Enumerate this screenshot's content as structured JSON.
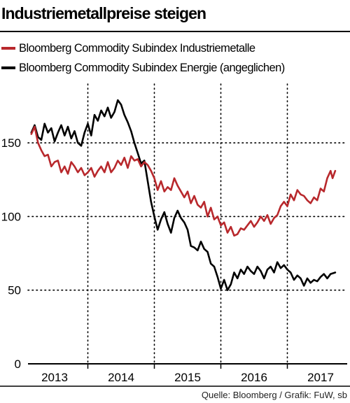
{
  "title": "Industriemetallpreise steigen",
  "source": "Quelle: Bloomberg / Grafik: FuW, sb",
  "colors": {
    "industriemetalle": "#b8282c",
    "energie": "#000000",
    "grid": "#000000"
  },
  "chart_data": {
    "type": "line",
    "title": "Industriemetallpreise steigen",
    "xlabel": "",
    "ylabel": "",
    "ylim": [
      0,
      190
    ],
    "xlim": [
      2012.6,
      2017.4
    ],
    "y_ticks": [
      0,
      50,
      100,
      150
    ],
    "x_tick_labels": [
      {
        "label": "2013",
        "x": 2013.0
      },
      {
        "label": "2014",
        "x": 2014.0
      },
      {
        "label": "2015",
        "x": 2015.0
      },
      {
        "label": "2016",
        "x": 2016.0
      },
      {
        "label": "2017",
        "x": 2017.0
      }
    ],
    "year_boundaries": [
      2013.5,
      2014.5,
      2015.5,
      2016.5
    ],
    "grid": "dotted horizontal at 50, 100, 150; dotted vertical between years",
    "legend_position": "top-left",
    "series": [
      {
        "key": "industriemetalle",
        "name": "Bloomberg Commodity Subindex Industriemetalle",
        "points": [
          [
            2012.65,
            156
          ],
          [
            2012.7,
            161
          ],
          [
            2012.75,
            150
          ],
          [
            2012.8,
            145
          ],
          [
            2012.85,
            141
          ],
          [
            2012.9,
            142
          ],
          [
            2012.95,
            134
          ],
          [
            2013.0,
            137
          ],
          [
            2013.05,
            138
          ],
          [
            2013.1,
            130
          ],
          [
            2013.15,
            134
          ],
          [
            2013.2,
            129
          ],
          [
            2013.25,
            137
          ],
          [
            2013.3,
            134
          ],
          [
            2013.35,
            130
          ],
          [
            2013.4,
            133
          ],
          [
            2013.45,
            128
          ],
          [
            2013.5,
            130
          ],
          [
            2013.55,
            133
          ],
          [
            2013.6,
            127
          ],
          [
            2013.65,
            131
          ],
          [
            2013.7,
            134
          ],
          [
            2013.75,
            130
          ],
          [
            2013.8,
            137
          ],
          [
            2013.85,
            130
          ],
          [
            2013.9,
            133
          ],
          [
            2013.95,
            138
          ],
          [
            2014.0,
            135
          ],
          [
            2014.05,
            140
          ],
          [
            2014.1,
            133
          ],
          [
            2014.15,
            141
          ],
          [
            2014.2,
            138
          ],
          [
            2014.25,
            139
          ],
          [
            2014.3,
            134
          ],
          [
            2014.35,
            137
          ],
          [
            2014.4,
            135
          ],
          [
            2014.45,
            131
          ],
          [
            2014.5,
            126
          ],
          [
            2014.55,
            118
          ],
          [
            2014.6,
            124
          ],
          [
            2014.65,
            117
          ],
          [
            2014.7,
            120
          ],
          [
            2014.75,
            118
          ],
          [
            2014.8,
            126
          ],
          [
            2014.85,
            121
          ],
          [
            2014.9,
            117
          ],
          [
            2014.95,
            113
          ],
          [
            2015.0,
            117
          ],
          [
            2015.05,
            109
          ],
          [
            2015.1,
            114
          ],
          [
            2015.15,
            108
          ],
          [
            2015.2,
            106
          ],
          [
            2015.25,
            110
          ],
          [
            2015.3,
            100
          ],
          [
            2015.35,
            106
          ],
          [
            2015.4,
            98
          ],
          [
            2015.45,
            100
          ],
          [
            2015.5,
            94
          ],
          [
            2015.55,
            96
          ],
          [
            2015.6,
            89
          ],
          [
            2015.65,
            93
          ],
          [
            2015.7,
            87
          ],
          [
            2015.75,
            88
          ],
          [
            2015.8,
            92
          ],
          [
            2015.85,
            91
          ],
          [
            2015.9,
            94
          ],
          [
            2015.95,
            97
          ],
          [
            2016.0,
            93
          ],
          [
            2016.05,
            96
          ],
          [
            2016.1,
            100
          ],
          [
            2016.15,
            97
          ],
          [
            2016.2,
            101
          ],
          [
            2016.25,
            95
          ],
          [
            2016.3,
            99
          ],
          [
            2016.35,
            101
          ],
          [
            2016.4,
            107
          ],
          [
            2016.45,
            110
          ],
          [
            2016.5,
            107
          ],
          [
            2016.55,
            115
          ],
          [
            2016.6,
            111
          ],
          [
            2016.65,
            118
          ],
          [
            2016.7,
            115
          ],
          [
            2016.75,
            114
          ],
          [
            2016.8,
            111
          ],
          [
            2016.85,
            109
          ],
          [
            2016.9,
            113
          ],
          [
            2016.95,
            111
          ],
          [
            2017.0,
            119
          ],
          [
            2017.05,
            117
          ],
          [
            2017.1,
            126
          ],
          [
            2017.15,
            131
          ],
          [
            2017.18,
            126
          ],
          [
            2017.22,
            131
          ]
        ]
      },
      {
        "key": "energie",
        "name": "Bloomberg Commodity Subindex Energie (angeglichen)",
        "points": [
          [
            2012.65,
            157
          ],
          [
            2012.7,
            162
          ],
          [
            2012.75,
            154
          ],
          [
            2012.8,
            152
          ],
          [
            2012.85,
            163
          ],
          [
            2012.9,
            157
          ],
          [
            2012.95,
            160
          ],
          [
            2013.0,
            151
          ],
          [
            2013.05,
            157
          ],
          [
            2013.1,
            162
          ],
          [
            2013.15,
            155
          ],
          [
            2013.2,
            161
          ],
          [
            2013.25,
            153
          ],
          [
            2013.3,
            158
          ],
          [
            2013.35,
            150
          ],
          [
            2013.4,
            148
          ],
          [
            2013.45,
            157
          ],
          [
            2013.5,
            163
          ],
          [
            2013.55,
            155
          ],
          [
            2013.6,
            169
          ],
          [
            2013.65,
            165
          ],
          [
            2013.7,
            172
          ],
          [
            2013.75,
            168
          ],
          [
            2013.8,
            174
          ],
          [
            2013.85,
            167
          ],
          [
            2013.9,
            171
          ],
          [
            2013.95,
            179
          ],
          [
            2014.0,
            176
          ],
          [
            2014.05,
            169
          ],
          [
            2014.1,
            164
          ],
          [
            2014.15,
            158
          ],
          [
            2014.2,
            150
          ],
          [
            2014.25,
            143
          ],
          [
            2014.3,
            136
          ],
          [
            2014.35,
            138
          ],
          [
            2014.4,
            124
          ],
          [
            2014.45,
            110
          ],
          [
            2014.5,
            100
          ],
          [
            2014.55,
            91
          ],
          [
            2014.6,
            98
          ],
          [
            2014.65,
            103
          ],
          [
            2014.7,
            95
          ],
          [
            2014.75,
            89
          ],
          [
            2014.8,
            99
          ],
          [
            2014.85,
            104
          ],
          [
            2014.9,
            99
          ],
          [
            2014.95,
            96
          ],
          [
            2015.0,
            91
          ],
          [
            2015.05,
            80
          ],
          [
            2015.1,
            79
          ],
          [
            2015.15,
            77
          ],
          [
            2015.2,
            83
          ],
          [
            2015.25,
            78
          ],
          [
            2015.3,
            76
          ],
          [
            2015.35,
            68
          ],
          [
            2015.4,
            66
          ],
          [
            2015.45,
            59
          ],
          [
            2015.5,
            51
          ],
          [
            2015.55,
            57
          ],
          [
            2015.6,
            50
          ],
          [
            2015.65,
            54
          ],
          [
            2015.7,
            62
          ],
          [
            2015.75,
            58
          ],
          [
            2015.8,
            64
          ],
          [
            2015.85,
            61
          ],
          [
            2015.9,
            66
          ],
          [
            2015.95,
            63
          ],
          [
            2016.0,
            61
          ],
          [
            2016.05,
            66
          ],
          [
            2016.1,
            63
          ],
          [
            2016.15,
            58
          ],
          [
            2016.2,
            64
          ],
          [
            2016.25,
            66
          ],
          [
            2016.3,
            62
          ],
          [
            2016.35,
            69
          ],
          [
            2016.4,
            65
          ],
          [
            2016.45,
            67
          ],
          [
            2016.5,
            64
          ],
          [
            2016.55,
            62
          ],
          [
            2016.6,
            57
          ],
          [
            2016.65,
            60
          ],
          [
            2016.7,
            58
          ],
          [
            2016.75,
            53
          ],
          [
            2016.8,
            58
          ],
          [
            2016.85,
            55
          ],
          [
            2016.9,
            57
          ],
          [
            2016.95,
            56
          ],
          [
            2017.0,
            59
          ],
          [
            2017.05,
            61
          ],
          [
            2017.1,
            58
          ],
          [
            2017.15,
            61
          ],
          [
            2017.22,
            62
          ]
        ]
      }
    ]
  }
}
